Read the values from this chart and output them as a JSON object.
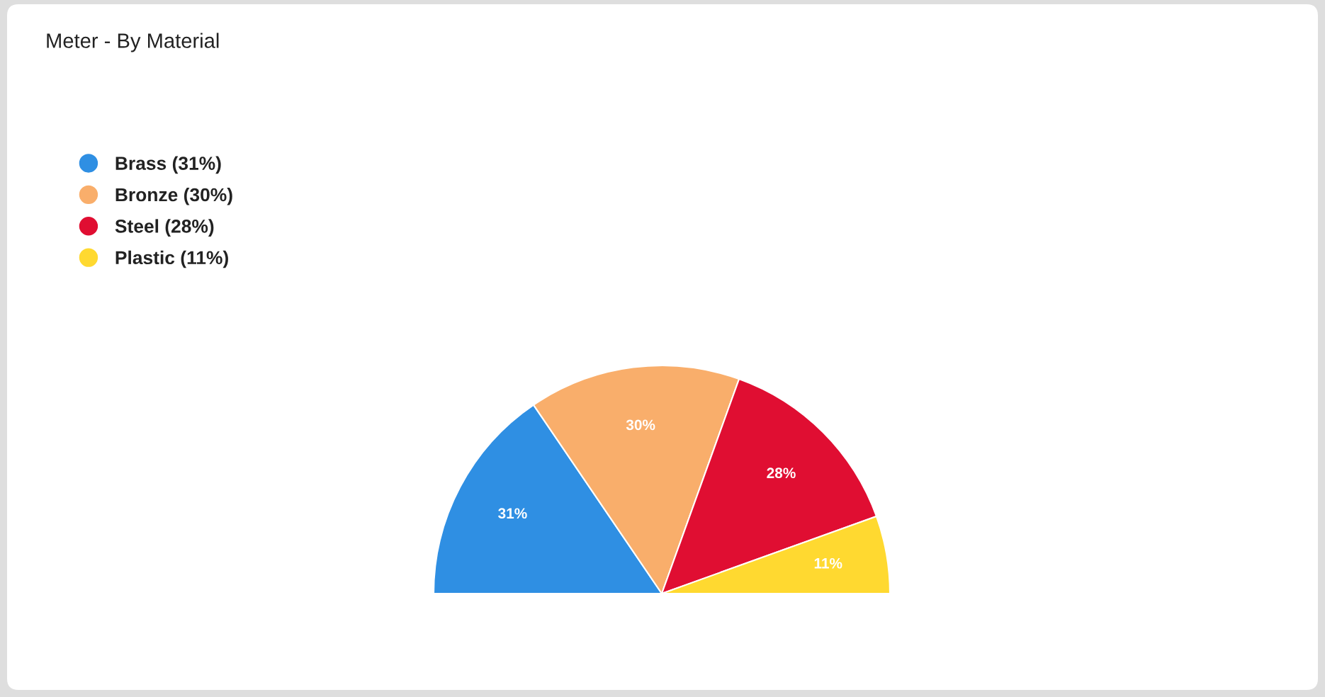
{
  "chart_data": {
    "type": "pie",
    "title": "Meter - By Material",
    "categories": [
      "Brass (31%)",
      "Bronze (30%)",
      "Steel (28%)",
      "Plastic (11%)"
    ],
    "values": [
      31,
      30,
      28,
      11
    ],
    "colors": [
      "#2f8fe3",
      "#f9ae6b",
      "#e00e32",
      "#ffd930"
    ],
    "value_labels": [
      "31%",
      "30%",
      "28%",
      "11%"
    ],
    "legend": "top left"
  }
}
